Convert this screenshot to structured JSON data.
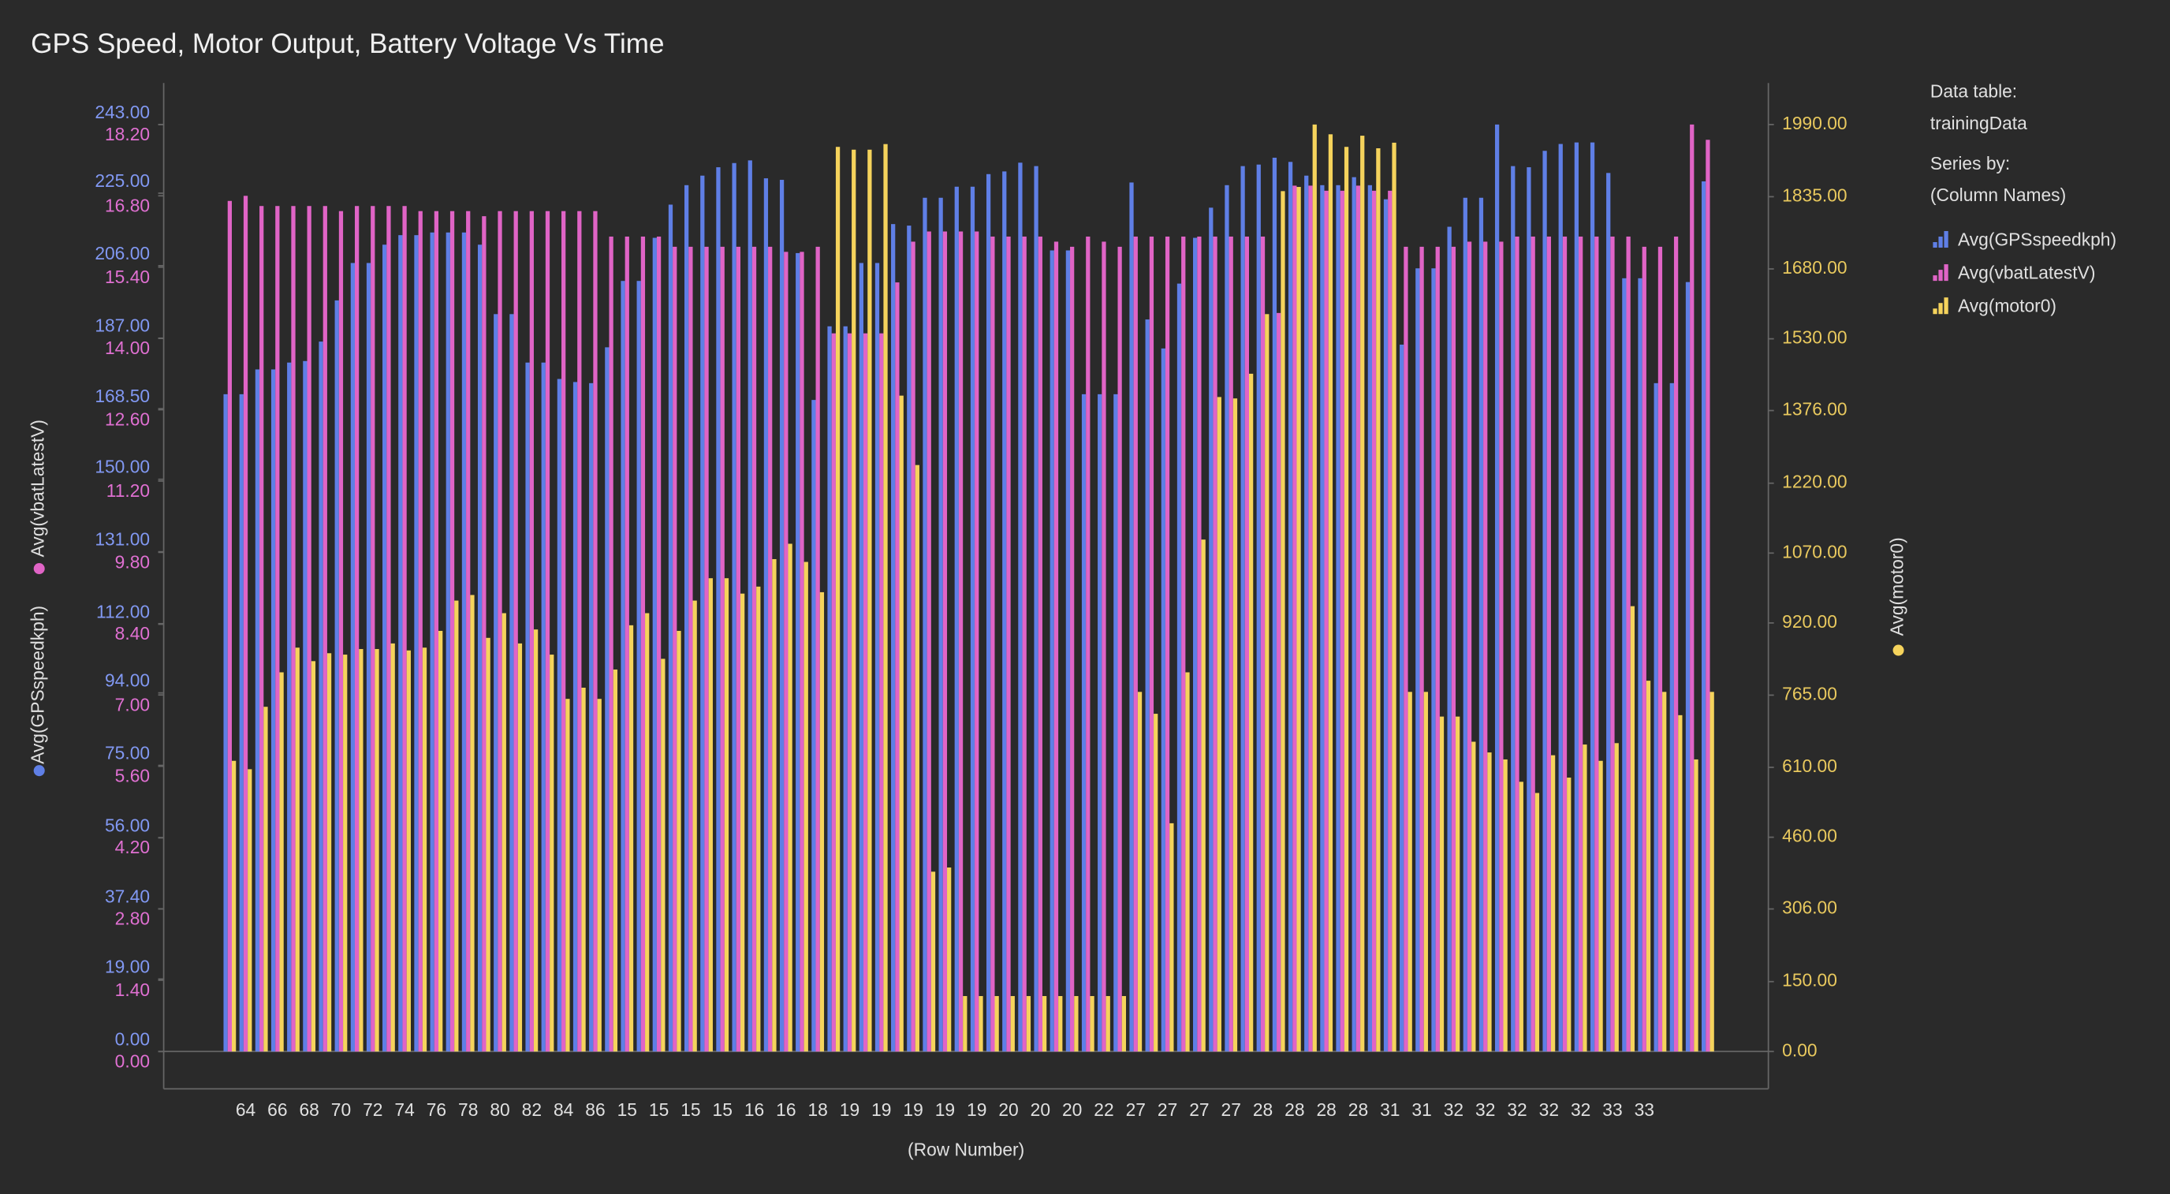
{
  "chart_data": {
    "type": "bar",
    "title": "GPS Speed, Motor Output, Battery Voltage Vs Time",
    "xlabel": "(Row Number)",
    "ylabel": "Avg(GPSspeedkph)",
    "y2label": "Avg(vbatLatestV)",
    "y3label": "Avg(motor0)",
    "legend_info": {
      "data_table_label": "Data table:",
      "data_table": "trainingData",
      "series_by_label": "Series by:",
      "series_by": "(Column Names)"
    },
    "categories": [
      null,
      "64",
      null,
      "66",
      null,
      "68",
      null,
      "70",
      null,
      "72",
      null,
      "74",
      null,
      "76",
      null,
      "78",
      null,
      "80",
      null,
      "82",
      null,
      "84",
      null,
      "86",
      null,
      "15",
      null,
      "15",
      null,
      "15",
      null,
      "15",
      null,
      "16",
      null,
      "16",
      null,
      "18",
      null,
      "19",
      null,
      "19",
      null,
      "19",
      null,
      "19",
      null,
      "19",
      null,
      "20",
      null,
      "20",
      null,
      "20",
      null,
      "22",
      null,
      "27",
      null,
      "27",
      null,
      "27",
      null,
      "27",
      null,
      "28",
      null,
      "28",
      null,
      "28",
      null,
      "28",
      null,
      "31",
      null,
      "31",
      null,
      "32",
      null,
      "32",
      null,
      "32",
      null,
      "32",
      null,
      "32",
      null,
      "33",
      null,
      "33",
      null,
      null,
      null,
      null
    ],
    "series": [
      {
        "name": "Avg(GPSspeedkph)",
        "color": "#5f7fe6",
        "axis": "y",
        "values": [
          172.3,
          172.3,
          178.8,
          178.8,
          180.6,
          181.0,
          186.1,
          196.9,
          206.7,
          206.7,
          211.5,
          214.0,
          214.0,
          214.7,
          214.7,
          214.7,
          211.5,
          193.3,
          193.3,
          180.6,
          180.6,
          176.3,
          175.5,
          175.2,
          184.6,
          202.0,
          202.0,
          213.3,
          222.0,
          227.1,
          229.6,
          231.8,
          232.9,
          233.6,
          228.9,
          228.5,
          209.3,
          170.8,
          190.1,
          190.1,
          206.7,
          206.7,
          216.9,
          216.5,
          223.8,
          223.8,
          226.7,
          226.7,
          230.0,
          230.7,
          233.0,
          232.1,
          210.0,
          210.0,
          172.3,
          172.3,
          172.3,
          227.8,
          191.9,
          184.3,
          201.3,
          213.3,
          221.2,
          227.1,
          232.1,
          232.5,
          234.3,
          233.2,
          229.6,
          227.1,
          227.1,
          229.2,
          227.1,
          223.4,
          185.3,
          205.3,
          205.3,
          216.2,
          223.8,
          223.8,
          243.0,
          232.1,
          231.8,
          236.1,
          237.9,
          238.3,
          238.3,
          230.3,
          202.7,
          202.7,
          175.2,
          175.2,
          201.7,
          228.1
        ]
      },
      {
        "name": "Avg(vbatLatestV)",
        "color": "#e064c6",
        "axis": "y2",
        "values": [
          16.7,
          16.8,
          16.6,
          16.6,
          16.6,
          16.6,
          16.6,
          16.5,
          16.6,
          16.6,
          16.6,
          16.6,
          16.5,
          16.5,
          16.5,
          16.5,
          16.4,
          16.5,
          16.5,
          16.5,
          16.5,
          16.5,
          16.5,
          16.5,
          16.0,
          16.0,
          16.0,
          16.0,
          15.8,
          15.8,
          15.8,
          15.8,
          15.8,
          15.8,
          15.8,
          15.7,
          15.7,
          15.8,
          14.1,
          14.1,
          14.1,
          14.1,
          15.1,
          15.9,
          16.1,
          16.1,
          16.1,
          16.1,
          16.0,
          16.0,
          16.0,
          16.0,
          15.9,
          15.8,
          16.0,
          15.9,
          15.8,
          16.0,
          16.0,
          16.0,
          16.0,
          16.0,
          16.0,
          16.0,
          16.0,
          16.0,
          14.5,
          17.0,
          17.0,
          16.9,
          16.9,
          17.0,
          16.9,
          16.9,
          15.8,
          15.8,
          15.8,
          15.8,
          15.9,
          15.9,
          15.9,
          16.0,
          16.0,
          16.0,
          16.0,
          16.0,
          16.0,
          16.0,
          16.0,
          15.8,
          15.8,
          16.0,
          18.2,
          17.9
        ]
      },
      {
        "name": "Avg(motor0)",
        "color": "#f5d35c",
        "axis": "y3",
        "values": [
          624,
          606,
          740,
          814,
          867,
          838,
          855,
          852,
          864,
          864,
          876,
          861,
          867,
          903,
          968,
          980,
          888,
          941,
          876,
          906,
          852,
          757,
          781,
          757,
          820,
          915,
          941,
          843,
          903,
          968,
          1016,
          1016,
          983,
          998,
          1057,
          1090,
          1051,
          986,
          1942,
          1936,
          1936,
          1948,
          1408,
          1259,
          386,
          395,
          119,
          119,
          119,
          119,
          119,
          119,
          119,
          119,
          119,
          119,
          119,
          772,
          725,
          490,
          814,
          1099,
          1405,
          1402,
          1455,
          1583,
          1847,
          1856,
          1990,
          1969,
          1942,
          1966,
          1939,
          1951,
          772,
          772,
          719,
          719,
          665,
          642,
          627,
          579,
          555,
          636,
          588,
          659,
          624,
          662,
          956,
          796,
          772,
          722,
          627,
          772
        ]
      }
    ],
    "ylim": [
      0,
      243
    ],
    "yticks": [
      {
        "value": 0,
        "label": "0.00"
      },
      {
        "value": 19,
        "label": "19.00"
      },
      {
        "value": 37.4,
        "label": "37.40"
      },
      {
        "value": 56,
        "label": "56.00"
      },
      {
        "value": 75,
        "label": "75.00"
      },
      {
        "value": 94,
        "label": "94.00"
      },
      {
        "value": 112,
        "label": "112.00"
      },
      {
        "value": 131,
        "label": "131.00"
      },
      {
        "value": 150,
        "label": "150.00"
      },
      {
        "value": 168.5,
        "label": "168.50"
      },
      {
        "value": 187,
        "label": "187.00"
      },
      {
        "value": 206,
        "label": "206.00"
      },
      {
        "value": 225,
        "label": "225.00"
      },
      {
        "value": 243,
        "label": "243.00"
      }
    ],
    "y2lim": [
      0,
      18.2
    ],
    "y2ticks": [
      {
        "value": 0,
        "label": "0.00"
      },
      {
        "value": 1.4,
        "label": "1.40"
      },
      {
        "value": 2.8,
        "label": "2.80"
      },
      {
        "value": 4.2,
        "label": "4.20"
      },
      {
        "value": 5.6,
        "label": "5.60"
      },
      {
        "value": 7,
        "label": "7.00"
      },
      {
        "value": 8.4,
        "label": "8.40"
      },
      {
        "value": 9.8,
        "label": "9.80"
      },
      {
        "value": 11.2,
        "label": "11.20"
      },
      {
        "value": 12.6,
        "label": "12.60"
      },
      {
        "value": 14,
        "label": "14.00"
      },
      {
        "value": 15.4,
        "label": "15.40"
      },
      {
        "value": 16.8,
        "label": "16.80"
      },
      {
        "value": 18.2,
        "label": "18.20"
      }
    ],
    "y3lim": [
      0,
      1990
    ],
    "y3ticks": [
      {
        "value": 0,
        "label": "0.00"
      },
      {
        "value": 150,
        "label": "150.00"
      },
      {
        "value": 306,
        "label": "306.00"
      },
      {
        "value": 460,
        "label": "460.00"
      },
      {
        "value": 610,
        "label": "610.00"
      },
      {
        "value": 765,
        "label": "765.00"
      },
      {
        "value": 920,
        "label": "920.00"
      },
      {
        "value": 1070,
        "label": "1070.00"
      },
      {
        "value": 1220,
        "label": "1220.00"
      },
      {
        "value": 1376,
        "label": "1376.00"
      },
      {
        "value": 1530,
        "label": "1530.00"
      },
      {
        "value": 1680,
        "label": "1680.00"
      },
      {
        "value": 1835,
        "label": "1835.00"
      },
      {
        "value": 1990,
        "label": "1990.00"
      }
    ],
    "tick_colors": {
      "y": "#8198f2",
      "y2": "#e070d2",
      "y3": "#e9c95e"
    }
  }
}
